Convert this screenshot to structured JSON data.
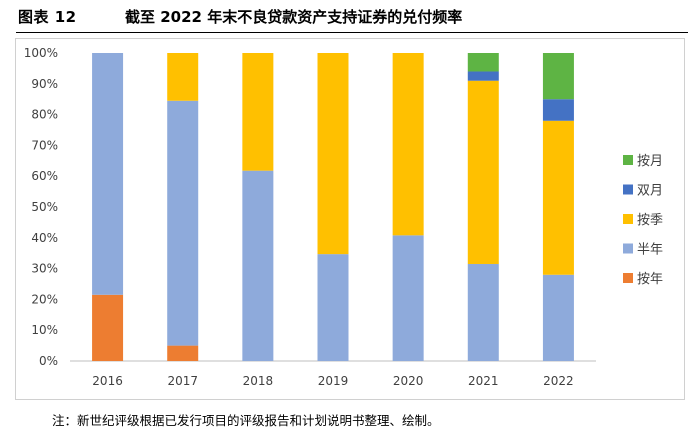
{
  "figure": {
    "label": "图表 12",
    "title": "截至 2022 年末不良贷款资产支持证券的兑付频率",
    "note": "注：新世纪评级根据已发行项目的评级报告和计划说明书整理、绘制。"
  },
  "chart_data": {
    "type": "bar",
    "stacked": true,
    "title": "截至 2022 年末不良贷款资产支持证券的兑付频率",
    "xlabel": "",
    "ylabel": "",
    "ylim": [
      0,
      100
    ],
    "yticks": [
      "0%",
      "10%",
      "20%",
      "30%",
      "40%",
      "50%",
      "60%",
      "70%",
      "80%",
      "90%",
      "100%"
    ],
    "categories": [
      "2016",
      "2017",
      "2018",
      "2019",
      "2020",
      "2021",
      "2022"
    ],
    "series": [
      {
        "name": "按年",
        "color": "#ed7d31",
        "values": [
          21.5,
          5,
          0,
          0,
          0,
          0,
          0
        ]
      },
      {
        "name": "半年",
        "color": "#8eaadb",
        "values": [
          78.5,
          79.5,
          61.8,
          34.7,
          40.8,
          31.5,
          28
        ]
      },
      {
        "name": "按季",
        "color": "#ffc000",
        "values": [
          0,
          15.5,
          38.2,
          65.3,
          59.2,
          59.5,
          50
        ]
      },
      {
        "name": "双月",
        "color": "#4472c4",
        "values": [
          0,
          0,
          0,
          0,
          0,
          3,
          7
        ]
      },
      {
        "name": "按月",
        "color": "#5eb444",
        "values": [
          0,
          0,
          0,
          0,
          0,
          6,
          15
        ]
      }
    ],
    "legend_order": [
      "按月",
      "双月",
      "按季",
      "半年",
      "按年"
    ],
    "legend_position": "right",
    "grid": false
  }
}
